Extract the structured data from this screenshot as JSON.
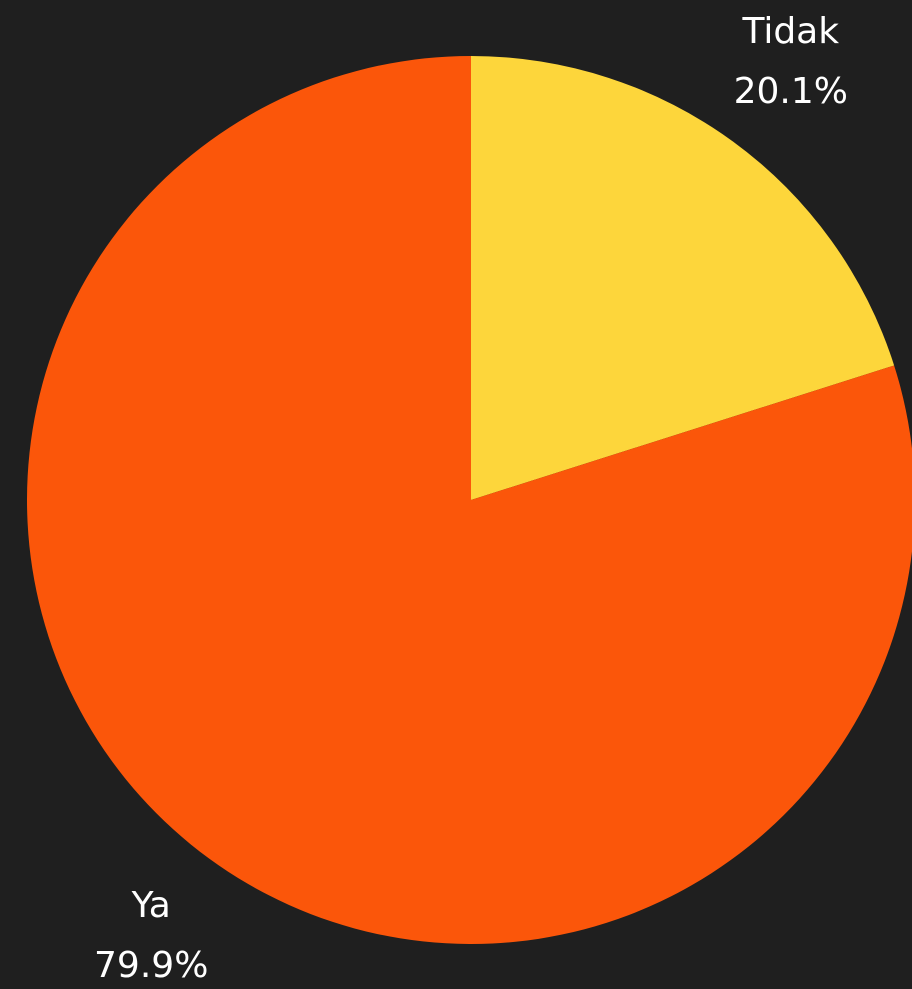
{
  "chart_data": {
    "type": "pie",
    "categories": [
      "Tidak",
      "Ya"
    ],
    "values": [
      20.1,
      79.9
    ],
    "value_labels": [
      "20.1%",
      "79.9%"
    ],
    "colors": [
      "#fdd63b",
      "#fb560a"
    ]
  }
}
